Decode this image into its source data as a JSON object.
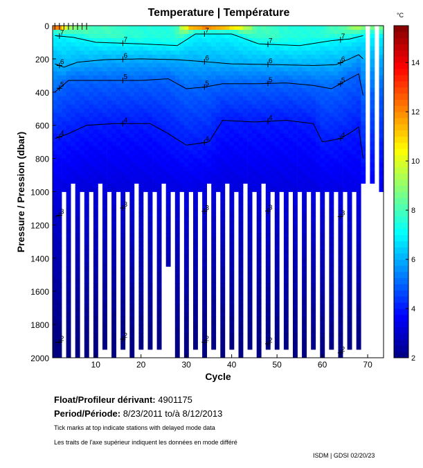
{
  "chart_data": {
    "type": "heatmap",
    "title": "Temperature | Température",
    "xlabel": "Cycle",
    "ylabel": "Pressure / Pression (dbar)",
    "colorbar_label": "°C",
    "xlim": [
      0.5,
      73.5
    ],
    "ylim": [
      2000,
      0
    ],
    "x_ticks": [
      10,
      20,
      30,
      40,
      50,
      60,
      70
    ],
    "y_ticks": [
      0,
      200,
      400,
      600,
      800,
      1000,
      1200,
      1400,
      1600,
      1800,
      2000
    ],
    "colorbar_range": [
      2,
      15.5
    ],
    "colorbar_ticks": [
      2,
      4,
      6,
      8,
      10,
      12,
      14
    ],
    "colormap": "jet",
    "contour_levels": [
      2,
      3,
      4,
      5,
      6,
      7
    ],
    "delayed_mode_cycles": [
      1,
      2,
      3,
      4,
      5,
      6,
      7,
      8
    ],
    "cycles": [
      1,
      2,
      3,
      4,
      5,
      6,
      7,
      8,
      9,
      10,
      11,
      12,
      13,
      14,
      15,
      16,
      17,
      18,
      19,
      20,
      21,
      22,
      23,
      24,
      25,
      26,
      27,
      28,
      29,
      30,
      31,
      32,
      33,
      34,
      35,
      36,
      37,
      38,
      39,
      40,
      41,
      42,
      43,
      44,
      45,
      46,
      47,
      48,
      49,
      50,
      51,
      52,
      53,
      54,
      55,
      56,
      57,
      58,
      59,
      60,
      61,
      62,
      63,
      64,
      65,
      66,
      67,
      68,
      69,
      70,
      71,
      72,
      73
    ],
    "max_pressure": [
      2000,
      2000,
      1000,
      2000,
      950,
      2000,
      1000,
      2000,
      1000,
      2000,
      950,
      1950,
      1000,
      2000,
      1000,
      1950,
      1000,
      2000,
      950,
      1950,
      1000,
      1950,
      1000,
      1950,
      950,
      1450,
      1000,
      2000,
      1000,
      2000,
      1000,
      1950,
      1000,
      2000,
      950,
      1950,
      1000,
      2000,
      950,
      1950,
      1000,
      2000,
      950,
      1950,
      1000,
      2000,
      950,
      1950,
      1000,
      1950,
      1000,
      1950,
      1000,
      2000,
      1000,
      2000,
      1000,
      1950,
      1000,
      2000,
      1000,
      1950,
      1000,
      2000,
      1000,
      1950,
      1000,
      1950,
      950,
      null,
      950,
      null,
      1000
    ],
    "surface_temperature": [
      14.5,
      14,
      12,
      10,
      9.5,
      9,
      8.5,
      8.5,
      8,
      8,
      8,
      8,
      8,
      7.8,
      7.8,
      7.8,
      7.6,
      7.6,
      7.6,
      7.6,
      7.5,
      7.5,
      7.5,
      7.5,
      7.5,
      7.5,
      7.6,
      8,
      10,
      11,
      13,
      14,
      14.5,
      15,
      15,
      14.5,
      14,
      14,
      13.5,
      13,
      12,
      11,
      10,
      9.5,
      8.5,
      8,
      8,
      8,
      7.8,
      7.8,
      7.6,
      7.6,
      7.5,
      7.5,
      7.5,
      7.5,
      7.5,
      7.5,
      7.5,
      7.6,
      7.8,
      8,
      8,
      8.2,
      8.5,
      9,
      9.5,
      10,
      9,
      null,
      9,
      null,
      9
    ],
    "isotherm_depths": {
      "7": [
        [
          1,
          60
        ],
        [
          5,
          70
        ],
        [
          10,
          100
        ],
        [
          20,
          110
        ],
        [
          28,
          120
        ],
        [
          32,
          50
        ],
        [
          40,
          50
        ],
        [
          46,
          110
        ],
        [
          55,
          120
        ],
        [
          62,
          90
        ],
        [
          66,
          80
        ],
        [
          69,
          60
        ],
        [
          73,
          60
        ]
      ],
      "6": [
        [
          1,
          230
        ],
        [
          3,
          250
        ],
        [
          6,
          220
        ],
        [
          12,
          205
        ],
        [
          20,
          200
        ],
        [
          28,
          205
        ],
        [
          33,
          215
        ],
        [
          40,
          230
        ],
        [
          50,
          235
        ],
        [
          58,
          240
        ],
        [
          63,
          235
        ],
        [
          66,
          200
        ],
        [
          68,
          175
        ],
        [
          69,
          200
        ],
        [
          73,
          210
        ]
      ],
      "5": [
        [
          1,
          400
        ],
        [
          4,
          330
        ],
        [
          10,
          330
        ],
        [
          20,
          330
        ],
        [
          26,
          320
        ],
        [
          30,
          380
        ],
        [
          34,
          370
        ],
        [
          38,
          350
        ],
        [
          45,
          350
        ],
        [
          52,
          345
        ],
        [
          58,
          360
        ],
        [
          62,
          380
        ],
        [
          66,
          320
        ],
        [
          68,
          290
        ],
        [
          69,
          420
        ],
        [
          73,
          400
        ]
      ],
      "4": [
        [
          1,
          680
        ],
        [
          4,
          650
        ],
        [
          8,
          600
        ],
        [
          14,
          590
        ],
        [
          22,
          590
        ],
        [
          26,
          650
        ],
        [
          30,
          720
        ],
        [
          35,
          700
        ],
        [
          38,
          570
        ],
        [
          45,
          580
        ],
        [
          52,
          570
        ],
        [
          58,
          590
        ],
        [
          60,
          700
        ],
        [
          64,
          680
        ],
        [
          67,
          630
        ],
        [
          68,
          610
        ],
        [
          69,
          800
        ],
        [
          73,
          760
        ]
      ],
      "3": [
        [
          1,
          1150
        ],
        [
          10,
          1080
        ],
        [
          20,
          1110
        ],
        [
          30,
          1130
        ],
        [
          40,
          1100
        ],
        [
          50,
          1120
        ],
        [
          60,
          1160
        ],
        [
          64,
          1150
        ],
        [
          68,
          1230
        ]
      ],
      "2": [
        [
          1,
          1910
        ],
        [
          10,
          1870
        ],
        [
          20,
          1900
        ],
        [
          30,
          1910
        ],
        [
          40,
          1900
        ],
        [
          50,
          1920
        ],
        [
          56,
          1960
        ],
        [
          64,
          1970
        ],
        [
          68,
          1910
        ]
      ]
    }
  },
  "info": {
    "float_label": "Float/Profileur dérivant:",
    "float_id": "4901175",
    "period_label": "Period/Période:",
    "period_start": "8/23/2011",
    "period_sep": "to/à",
    "period_end": "8/12/2013",
    "note_en": "Tick marks at top indicate stations with delayed mode data",
    "note_fr": "Les traits de l'axe supérieur indiquent les données en mode différé",
    "credit": "ISDM | GDSI  02/20/23"
  }
}
